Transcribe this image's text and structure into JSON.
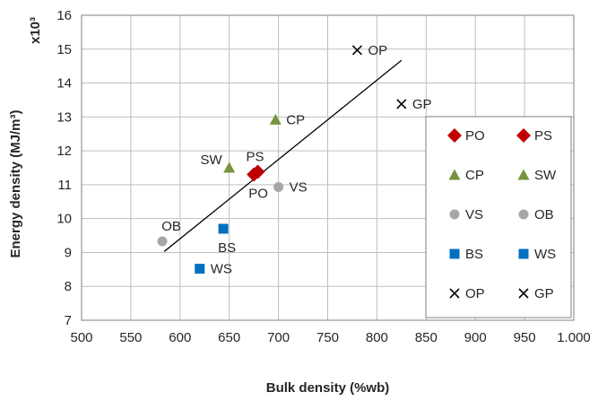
{
  "chart_data": {
    "type": "scatter",
    "title": "",
    "xlabel": "Bulk density (%wb)",
    "ylabel": "Energy density (MJ/m³)",
    "y_multiplier": "x10³",
    "xlim": [
      500,
      1000
    ],
    "ylim": [
      7,
      16
    ],
    "x_ticks": [
      "500",
      "550",
      "600",
      "650",
      "700",
      "750",
      "800",
      "850",
      "900",
      "950",
      "1.000"
    ],
    "y_ticks": [
      "7",
      "8",
      "9",
      "10",
      "11",
      "12",
      "13",
      "14",
      "15",
      "16"
    ],
    "grid": true,
    "legend_position": "right",
    "colors": {
      "PO": "#c00000",
      "PS": "#c00000",
      "CP": "#77933c",
      "SW": "#77933c",
      "VS": "#a6a6a6",
      "OB": "#a6a6a6",
      "BS": "#0070c0",
      "WS": "#0070c0",
      "OP": "#000000",
      "GP": "#000000",
      "trendline": "#000000"
    },
    "series": [
      {
        "name": "PO",
        "marker": "diamond",
        "x": 675,
        "y": 11.3,
        "label": "PO",
        "label_pos": "below"
      },
      {
        "name": "PS",
        "marker": "diamond",
        "x": 679,
        "y": 11.38,
        "label": "PS",
        "label_pos": "above"
      },
      {
        "name": "CP",
        "marker": "triangle",
        "x": 697,
        "y": 12.92,
        "label": "CP",
        "label_pos": "right"
      },
      {
        "name": "SW",
        "marker": "triangle",
        "x": 650,
        "y": 11.5,
        "label": "SW",
        "label_pos": "left"
      },
      {
        "name": "VS",
        "marker": "circle",
        "x": 700,
        "y": 10.93,
        "label": "VS",
        "label_pos": "right"
      },
      {
        "name": "OB",
        "marker": "circle",
        "x": 582,
        "y": 9.33,
        "label": "OB",
        "label_pos": "above"
      },
      {
        "name": "BS",
        "marker": "square",
        "x": 644,
        "y": 9.7,
        "label": "BS",
        "label_pos": "below"
      },
      {
        "name": "WS",
        "marker": "square",
        "x": 620,
        "y": 8.52,
        "label": "WS",
        "label_pos": "right"
      },
      {
        "name": "OP",
        "marker": "x",
        "x": 780,
        "y": 14.97,
        "label": "OP",
        "label_pos": "right"
      },
      {
        "name": "GP",
        "marker": "x",
        "x": 825,
        "y": 13.38,
        "label": "GP",
        "label_pos": "right"
      }
    ],
    "trendline": {
      "x": [
        584,
        825
      ],
      "y": [
        9.03,
        14.67
      ]
    },
    "legend": {
      "entries": [
        "PO",
        "PS",
        "CP",
        "SW",
        "VS",
        "OB",
        "BS",
        "WS",
        "OP",
        "GP"
      ],
      "columns": 2
    }
  }
}
